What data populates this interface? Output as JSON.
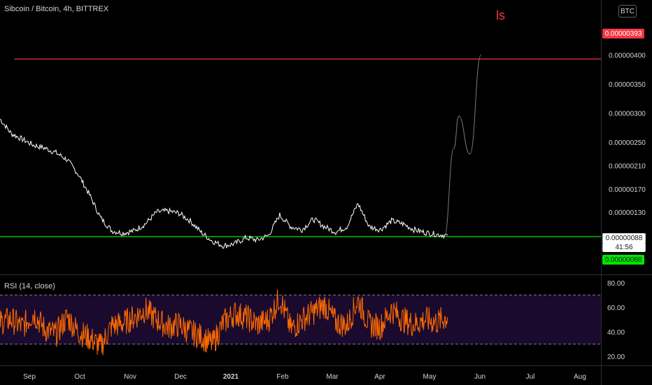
{
  "header": {
    "symbol_title": "Sibcoin / Bitcoin, 4h, BITTREX",
    "currency_button": "BTC"
  },
  "annotation": {
    "text": "ls",
    "color": "#f23645"
  },
  "price_axis": {
    "tick_labels": [
      "0.00000400",
      "0.00000350",
      "0.00000300",
      "0.00000250",
      "0.00000210",
      "0.00000170",
      "0.00000130"
    ],
    "tick_values": [
      4.0,
      3.5,
      3.0,
      2.5,
      2.1,
      1.7,
      1.3
    ],
    "resistance_label": "0.00000393",
    "current_price_label": "0.00000088",
    "countdown_label": "41:56",
    "support_label": "0.00000088"
  },
  "rsi": {
    "title": "RSI (14, close)",
    "tick_labels": [
      "80.00",
      "60.00",
      "40.00",
      "20.00"
    ],
    "tick_values": [
      80,
      60,
      40,
      20
    ],
    "upper_band": 70,
    "lower_band": 30,
    "color": "#ff6a00",
    "band_fill": "#1a0a2e"
  },
  "time_axis": {
    "labels": [
      "Sep",
      "Oct",
      "Nov",
      "Dec",
      "2021",
      "Feb",
      "Mar",
      "Apr",
      "May",
      "Jun",
      "Jul",
      "Aug"
    ]
  },
  "colors": {
    "background": "#000000",
    "price_line": "#ffffff",
    "resistance_line": "#f23645",
    "support_line": "#00e600",
    "projection_line": "#787b86"
  },
  "chart_data": [
    {
      "type": "line",
      "title": "Sibcoin / Bitcoin, 4h, BITTREX",
      "ylabel": "",
      "y_unit": "×1e-8 BTC (satoshi)",
      "ylim": [
        0.5,
        4.1
      ],
      "x": [
        "2020-08-20",
        "2020-08-27",
        "2020-09-03",
        "2020-09-10",
        "2020-09-17",
        "2020-09-24",
        "2020-10-01",
        "2020-10-08",
        "2020-10-15",
        "2020-10-22",
        "2020-10-29",
        "2020-11-05",
        "2020-11-12",
        "2020-11-19",
        "2020-11-26",
        "2020-12-03",
        "2020-12-10",
        "2020-12-17",
        "2020-12-24",
        "2020-12-31",
        "2021-01-07",
        "2021-01-14",
        "2021-01-21",
        "2021-01-28",
        "2021-02-04",
        "2021-02-11",
        "2021-02-18",
        "2021-02-25",
        "2021-03-04",
        "2021-03-11",
        "2021-03-18",
        "2021-03-25",
        "2021-04-01",
        "2021-04-08",
        "2021-04-15",
        "2021-04-22",
        "2021-04-29",
        "2021-05-06",
        "2021-05-13",
        "2021-05-20",
        "2021-05-27"
      ],
      "values": [
        2.9,
        2.65,
        2.55,
        2.45,
        2.4,
        2.32,
        2.2,
        1.95,
        1.6,
        1.2,
        0.98,
        0.94,
        0.98,
        1.1,
        1.3,
        1.32,
        1.28,
        1.15,
        0.95,
        0.8,
        0.72,
        0.76,
        0.86,
        0.82,
        0.9,
        1.25,
        1.05,
        1.0,
        1.18,
        1.05,
        0.96,
        1.05,
        1.45,
        1.05,
        1.0,
        1.15,
        1.1,
        1.0,
        0.95,
        0.92,
        0.9
      ],
      "series": [
        {
          "name": "",
          "values": [
            2.9,
            2.65,
            2.55,
            2.45,
            2.4,
            2.32,
            2.2,
            1.95,
            1.6,
            1.2,
            0.98,
            0.94,
            0.98,
            1.1,
            1.3,
            1.32,
            1.28,
            1.15,
            0.95,
            0.8,
            0.72,
            0.76,
            0.86,
            0.82,
            0.9,
            1.25,
            1.05,
            1.0,
            1.18,
            1.05,
            0.96,
            1.05,
            1.45,
            1.05,
            1.0,
            1.15,
            1.1,
            1.0,
            0.95,
            0.92,
            0.9
          ]
        }
      ],
      "projection": {
        "x": [
          "2021-05-25",
          "2021-05-31",
          "2021-06-03",
          "2021-06-10",
          "2021-06-17"
        ],
        "values": [
          0.88,
          2.4,
          2.95,
          2.3,
          4.0
        ]
      },
      "horizontal_lines": [
        {
          "value": 3.93,
          "color": "#f23645",
          "start": "2020-08-29"
        },
        {
          "value": 0.88,
          "color": "#00e600",
          "start": "2020-08-20"
        }
      ],
      "annotations": [
        "ls"
      ]
    },
    {
      "type": "line",
      "title": "RSI (14, close)",
      "ylim": [
        15,
        85
      ],
      "x": [
        "2020-08-20",
        "2020-08-27",
        "2020-09-03",
        "2020-09-10",
        "2020-09-17",
        "2020-09-24",
        "2020-10-01",
        "2020-10-08",
        "2020-10-15",
        "2020-10-22",
        "2020-10-29",
        "2020-11-05",
        "2020-11-12",
        "2020-11-19",
        "2020-11-26",
        "2020-12-03",
        "2020-12-10",
        "2020-12-17",
        "2020-12-24",
        "2020-12-31",
        "2021-01-07",
        "2021-01-14",
        "2021-01-21",
        "2021-01-28",
        "2021-02-04",
        "2021-02-11",
        "2021-02-18",
        "2021-02-25",
        "2021-03-04",
        "2021-03-11",
        "2021-03-18",
        "2021-03-25",
        "2021-04-01",
        "2021-04-08",
        "2021-04-15",
        "2021-04-22",
        "2021-04-29",
        "2021-05-06",
        "2021-05-13",
        "2021-05-20",
        "2021-05-27"
      ],
      "values": [
        48,
        50,
        44,
        55,
        42,
        38,
        52,
        40,
        35,
        28,
        45,
        47,
        52,
        58,
        50,
        44,
        46,
        40,
        36,
        30,
        48,
        55,
        52,
        46,
        50,
        68,
        42,
        50,
        56,
        62,
        48,
        45,
        66,
        46,
        44,
        58,
        50,
        46,
        50,
        48,
        52
      ],
      "series": [
        {
          "name": "",
          "values": [
            48,
            50,
            44,
            55,
            42,
            38,
            52,
            40,
            35,
            28,
            45,
            47,
            52,
            58,
            50,
            44,
            46,
            40,
            36,
            30,
            48,
            55,
            52,
            46,
            50,
            68,
            42,
            50,
            56,
            62,
            48,
            45,
            66,
            46,
            44,
            58,
            50,
            46,
            50,
            48,
            52
          ]
        }
      ],
      "bands": [
        70,
        30
      ]
    }
  ]
}
